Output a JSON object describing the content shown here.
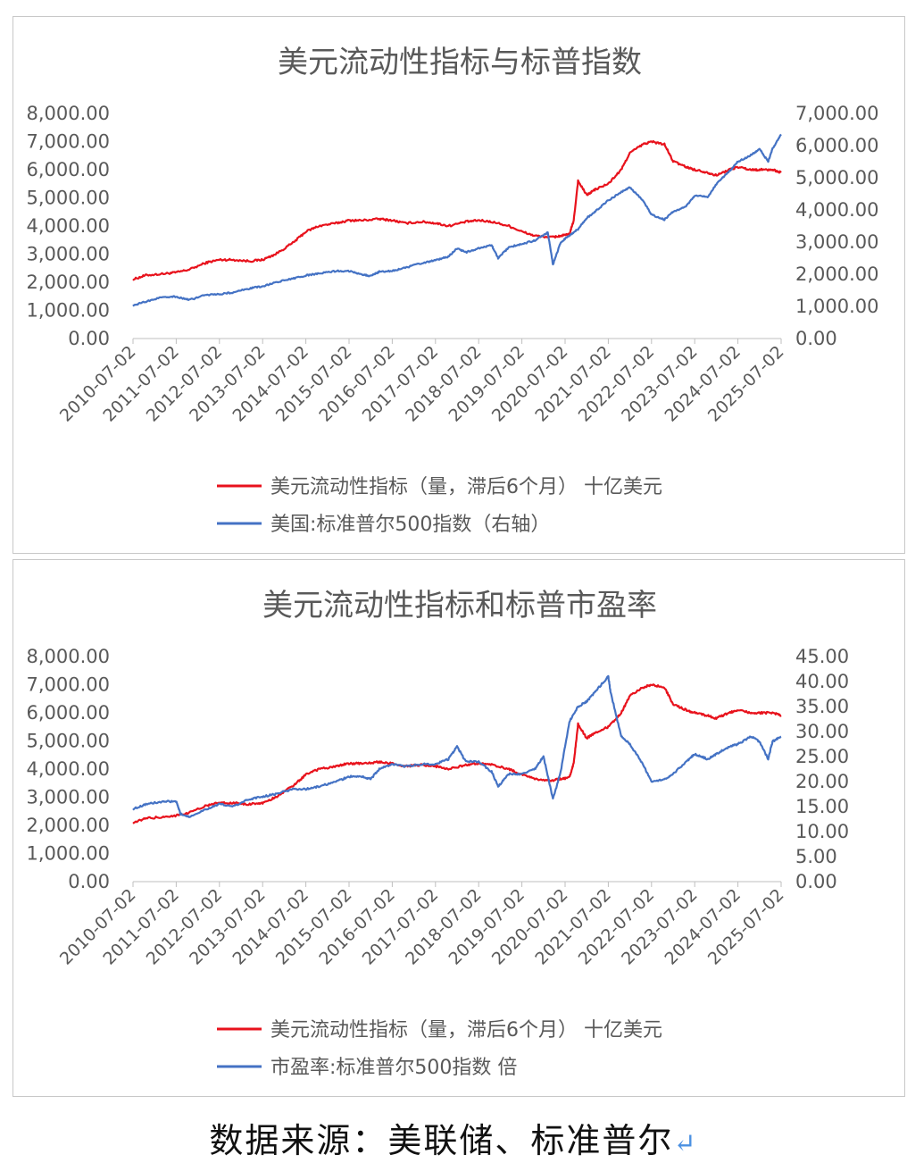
{
  "source_text": "数据来源：美联储、标准普尔",
  "return_glyph": "↵",
  "colors": {
    "liquidity": "#e8121c",
    "sp500": "#4472c4",
    "axis": "#bfbfbf",
    "text": "#595959"
  },
  "chart_data": [
    {
      "type": "line",
      "title": "美元流动性指标与标普指数",
      "x_ticks": [
        "2010-07-02",
        "2011-07-02",
        "2012-07-02",
        "2013-07-02",
        "2014-07-02",
        "2015-07-02",
        "2016-07-02",
        "2017-07-02",
        "2018-07-02",
        "2019-07-02",
        "2020-07-02",
        "2021-07-02",
        "2022-07-02",
        "2023-07-02",
        "2024-07-02",
        "2025-07-02"
      ],
      "x_range": [
        2010.5,
        2025.5
      ],
      "left_axis": {
        "min": 0,
        "max": 8000,
        "step": 1000,
        "ticks": [
          "0.00",
          "1,000.00",
          "2,000.00",
          "3,000.00",
          "4,000.00",
          "5,000.00",
          "6,000.00",
          "7,000.00",
          "8,000.00"
        ]
      },
      "right_axis": {
        "min": 0,
        "max": 7000,
        "step": 1000,
        "ticks": [
          "0.00",
          "1,000.00",
          "2,000.00",
          "3,000.00",
          "4,000.00",
          "5,000.00",
          "6,000.00",
          "7,000.00"
        ]
      },
      "legend": [
        "美元流动性指标（量，滞后6个月） 十亿美元",
        "美国:标准普尔500指数（右轴）"
      ],
      "series": [
        {
          "name": "美元流动性指标（量，滞后6个月） 十亿美元",
          "axis": "left",
          "x": [
            2010.5,
            2010.8,
            2011.2,
            2011.5,
            2011.8,
            2012.2,
            2012.5,
            2012.8,
            2013.2,
            2013.5,
            2013.8,
            2014.2,
            2014.5,
            2014.8,
            2015.2,
            2015.5,
            2015.8,
            2016.2,
            2016.5,
            2016.8,
            2017.2,
            2017.5,
            2017.8,
            2018.2,
            2018.5,
            2018.8,
            2019.2,
            2019.5,
            2019.8,
            2020.2,
            2020.4,
            2020.6,
            2020.7,
            2020.8,
            2021.0,
            2021.2,
            2021.5,
            2021.8,
            2022.0,
            2022.3,
            2022.5,
            2022.8,
            2023.0,
            2023.3,
            2023.5,
            2023.8,
            2024.0,
            2024.3,
            2024.5,
            2024.8,
            2025.0,
            2025.3,
            2025.5
          ],
          "y": [
            2100,
            2250,
            2300,
            2350,
            2450,
            2700,
            2800,
            2800,
            2750,
            2800,
            3000,
            3400,
            3800,
            4000,
            4100,
            4200,
            4200,
            4250,
            4200,
            4100,
            4150,
            4100,
            4000,
            4150,
            4200,
            4150,
            4000,
            3800,
            3650,
            3600,
            3650,
            3700,
            4200,
            5600,
            5100,
            5300,
            5500,
            6000,
            6600,
            6900,
            7000,
            6900,
            6300,
            6100,
            6000,
            5900,
            5800,
            6000,
            6100,
            6000,
            6000,
            6000,
            5900
          ]
        },
        {
          "name": "美国:标准普尔500指数（右轴）",
          "axis": "right",
          "x": [
            2010.5,
            2010.8,
            2011.2,
            2011.5,
            2011.8,
            2012.2,
            2012.5,
            2012.8,
            2013.2,
            2013.5,
            2013.8,
            2014.2,
            2014.5,
            2014.8,
            2015.2,
            2015.5,
            2015.8,
            2016.0,
            2016.2,
            2016.5,
            2016.8,
            2017.2,
            2017.5,
            2017.8,
            2018.0,
            2018.2,
            2018.5,
            2018.8,
            2018.95,
            2019.2,
            2019.5,
            2019.8,
            2020.1,
            2020.22,
            2020.4,
            2020.6,
            2020.8,
            2021.0,
            2021.2,
            2021.5,
            2021.8,
            2022.0,
            2022.3,
            2022.5,
            2022.8,
            2023.0,
            2023.3,
            2023.5,
            2023.8,
            2024.0,
            2024.3,
            2024.5,
            2024.8,
            2025.0,
            2025.2,
            2025.3,
            2025.5
          ],
          "y": [
            1030,
            1150,
            1300,
            1300,
            1200,
            1360,
            1380,
            1430,
            1560,
            1620,
            1750,
            1860,
            1960,
            2020,
            2100,
            2100,
            2000,
            1940,
            2080,
            2100,
            2200,
            2350,
            2430,
            2550,
            2800,
            2680,
            2800,
            2900,
            2500,
            2840,
            2940,
            3050,
            3300,
            2300,
            3000,
            3200,
            3400,
            3750,
            3950,
            4300,
            4550,
            4700,
            4300,
            3850,
            3700,
            3950,
            4100,
            4450,
            4400,
            4800,
            5200,
            5500,
            5700,
            5900,
            5500,
            5900,
            6350
          ]
        }
      ]
    },
    {
      "type": "line",
      "title": "美元流动性指标和标普市盈率",
      "x_ticks": [
        "2010-07-02",
        "2011-07-02",
        "2012-07-02",
        "2013-07-02",
        "2014-07-02",
        "2015-07-02",
        "2016-07-02",
        "2017-07-02",
        "2018-07-02",
        "2019-07-02",
        "2020-07-02",
        "2021-07-02",
        "2022-07-02",
        "2023-07-02",
        "2024-07-02",
        "2025-07-02"
      ],
      "x_range": [
        2010.5,
        2025.5
      ],
      "left_axis": {
        "min": 0,
        "max": 8000,
        "step": 1000,
        "ticks": [
          "0.00",
          "1,000.00",
          "2,000.00",
          "3,000.00",
          "4,000.00",
          "5,000.00",
          "6,000.00",
          "7,000.00",
          "8,000.00"
        ]
      },
      "right_axis": {
        "min": 0,
        "max": 45,
        "step": 5,
        "ticks": [
          "0.00",
          "5.00",
          "10.00",
          "15.00",
          "20.00",
          "25.00",
          "30.00",
          "35.00",
          "40.00",
          "45.00"
        ]
      },
      "legend": [
        "美元流动性指标（量，滞后6个月） 十亿美元",
        "市盈率:标准普尔500指数 倍"
      ],
      "series": [
        {
          "name": "美元流动性指标（量，滞后6个月） 十亿美元",
          "axis": "left",
          "x": [
            2010.5,
            2010.8,
            2011.2,
            2011.5,
            2011.8,
            2012.2,
            2012.5,
            2012.8,
            2013.2,
            2013.5,
            2013.8,
            2014.2,
            2014.5,
            2014.8,
            2015.2,
            2015.5,
            2015.8,
            2016.2,
            2016.5,
            2016.8,
            2017.2,
            2017.5,
            2017.8,
            2018.2,
            2018.5,
            2018.8,
            2019.2,
            2019.5,
            2019.8,
            2020.2,
            2020.4,
            2020.6,
            2020.7,
            2020.8,
            2021.0,
            2021.2,
            2021.5,
            2021.8,
            2022.0,
            2022.3,
            2022.5,
            2022.8,
            2023.0,
            2023.3,
            2023.5,
            2023.8,
            2024.0,
            2024.3,
            2024.5,
            2024.8,
            2025.0,
            2025.3,
            2025.5
          ],
          "y": [
            2100,
            2250,
            2300,
            2350,
            2450,
            2700,
            2800,
            2800,
            2750,
            2800,
            3000,
            3400,
            3800,
            4000,
            4100,
            4200,
            4200,
            4250,
            4200,
            4100,
            4150,
            4100,
            4000,
            4150,
            4200,
            4150,
            4000,
            3800,
            3650,
            3600,
            3650,
            3700,
            4200,
            5600,
            5100,
            5300,
            5500,
            6000,
            6600,
            6900,
            7000,
            6900,
            6300,
            6100,
            6000,
            5900,
            5800,
            6000,
            6100,
            6000,
            6000,
            6000,
            5900
          ]
        },
        {
          "name": "市盈率:标准普尔500指数 倍",
          "axis": "right",
          "x": [
            2010.5,
            2010.8,
            2011.2,
            2011.5,
            2011.6,
            2011.8,
            2012.2,
            2012.5,
            2012.8,
            2013.2,
            2013.5,
            2013.8,
            2014.2,
            2014.5,
            2014.8,
            2015.2,
            2015.5,
            2015.8,
            2016.0,
            2016.2,
            2016.5,
            2016.8,
            2017.2,
            2017.5,
            2017.8,
            2018.0,
            2018.2,
            2018.5,
            2018.8,
            2018.95,
            2019.2,
            2019.5,
            2019.8,
            2020.0,
            2020.22,
            2020.4,
            2020.6,
            2020.8,
            2021.0,
            2021.2,
            2021.5,
            2021.55,
            2021.8,
            2022.0,
            2022.3,
            2022.5,
            2022.8,
            2023.0,
            2023.3,
            2023.5,
            2023.8,
            2024.0,
            2024.3,
            2024.5,
            2024.8,
            2025.0,
            2025.2,
            2025.3,
            2025.5
          ],
          "y": [
            14.5,
            15.5,
            16.0,
            16.0,
            13.5,
            13.0,
            14.5,
            15.5,
            15.0,
            16.5,
            17.0,
            17.5,
            18.5,
            18.5,
            19.0,
            20.0,
            21.0,
            21.0,
            20.5,
            22.5,
            23.5,
            23.0,
            23.5,
            23.5,
            24.5,
            27.0,
            24.0,
            24.0,
            22.0,
            19.0,
            21.5,
            21.5,
            22.5,
            25.0,
            16.5,
            22.0,
            32.0,
            35.0,
            36.0,
            38.0,
            41.0,
            38.0,
            29.0,
            27.5,
            23.5,
            20.0,
            20.5,
            21.5,
            24.0,
            25.5,
            24.5,
            25.5,
            27.0,
            27.5,
            29.0,
            28.0,
            24.5,
            28.0,
            29.0
          ]
        }
      ]
    }
  ]
}
